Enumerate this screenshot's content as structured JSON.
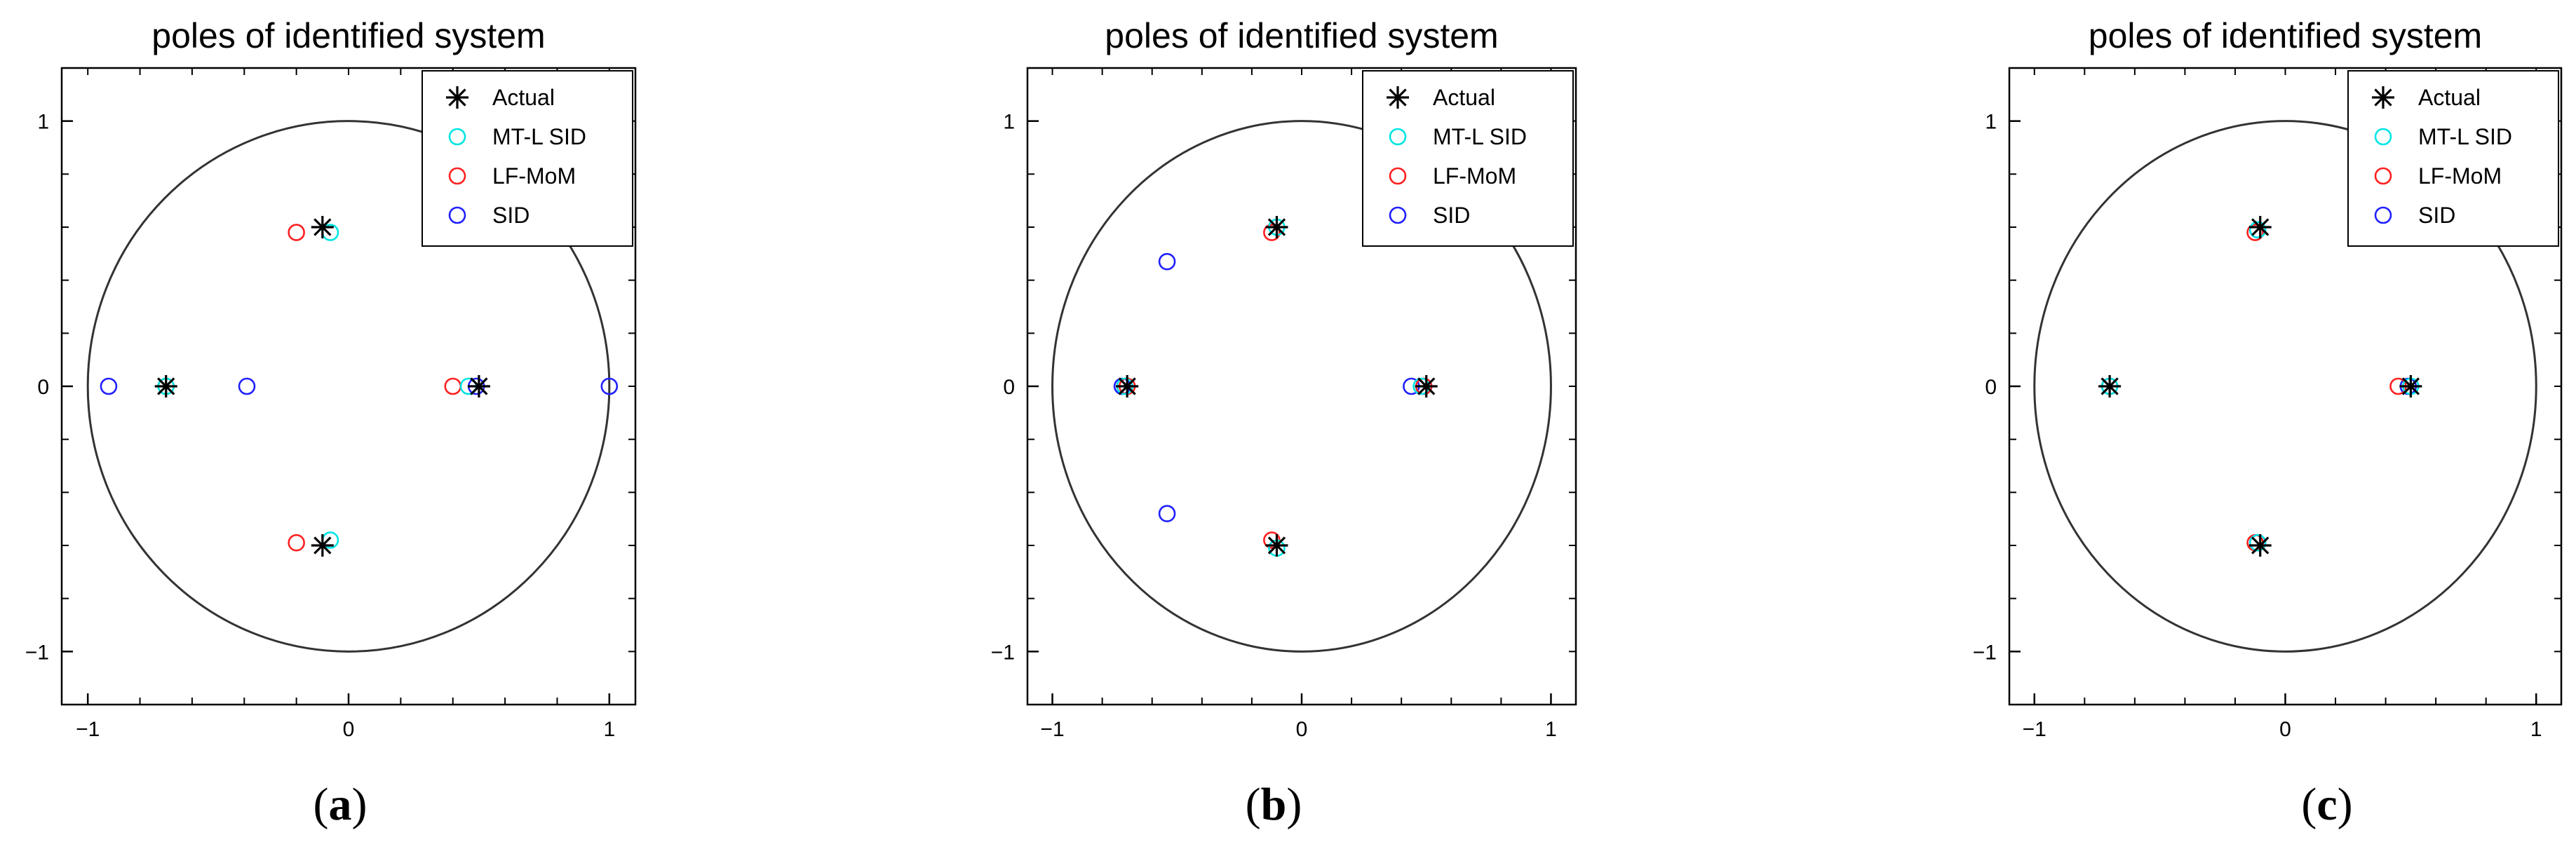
{
  "colors": {
    "actual": "#000000",
    "mtl": "#00e5e5",
    "lfmom": "#ff2020",
    "sid": "#2020ff",
    "axis": "#000000"
  },
  "panels": [
    {
      "caption_letter": "a"
    },
    {
      "caption_letter": "b"
    },
    {
      "caption_letter": "c"
    }
  ],
  "chart_data": [
    {
      "type": "scatter",
      "title": "poles of identified system",
      "xlim": [
        -1.1,
        1.1
      ],
      "ylim": [
        -1.2,
        1.2
      ],
      "xticks": [
        -1,
        0,
        1
      ],
      "yticks": [
        -1,
        0,
        1
      ],
      "grid": false,
      "legend_position": "top-right",
      "unit_circle": true,
      "series": [
        {
          "name": "Actual",
          "marker": "star",
          "points": [
            [
              -0.7,
              0
            ],
            [
              -0.1,
              0.6
            ],
            [
              -0.1,
              -0.6
            ],
            [
              0.5,
              0
            ]
          ]
        },
        {
          "name": "MT-L SID",
          "marker": "circle",
          "points": [
            [
              -0.7,
              0
            ],
            [
              -0.07,
              0.58
            ],
            [
              -0.07,
              -0.58
            ],
            [
              0.46,
              0
            ]
          ]
        },
        {
          "name": "LF-MoM",
          "marker": "circle",
          "points": [
            [
              -0.7,
              0
            ],
            [
              -0.2,
              0.58
            ],
            [
              -0.2,
              -0.59
            ],
            [
              0.4,
              0
            ]
          ]
        },
        {
          "name": "SID",
          "marker": "circle",
          "points": [
            [
              -0.92,
              0
            ],
            [
              -0.39,
              0
            ],
            [
              0.49,
              0
            ],
            [
              1.0,
              0
            ]
          ]
        }
      ]
    },
    {
      "type": "scatter",
      "title": "poles of identified system",
      "xlim": [
        -1.1,
        1.1
      ],
      "ylim": [
        -1.2,
        1.2
      ],
      "xticks": [
        -1,
        0,
        1
      ],
      "yticks": [
        -1,
        0,
        1
      ],
      "grid": false,
      "legend_position": "top-right",
      "unit_circle": true,
      "series": [
        {
          "name": "Actual",
          "marker": "star",
          "points": [
            [
              -0.7,
              0
            ],
            [
              -0.1,
              0.6
            ],
            [
              -0.1,
              -0.6
            ],
            [
              0.5,
              0
            ]
          ]
        },
        {
          "name": "MT-L SID",
          "marker": "circle",
          "points": [
            [
              -0.71,
              0
            ],
            [
              -0.1,
              0.6
            ],
            [
              -0.1,
              -0.61
            ],
            [
              0.48,
              0
            ]
          ]
        },
        {
          "name": "LF-MoM",
          "marker": "circle",
          "points": [
            [
              -0.7,
              0
            ],
            [
              -0.12,
              0.58
            ],
            [
              -0.12,
              -0.58
            ],
            [
              0.49,
              0
            ]
          ]
        },
        {
          "name": "SID",
          "marker": "circle",
          "points": [
            [
              -0.72,
              0
            ],
            [
              -0.54,
              0.47
            ],
            [
              -0.54,
              -0.48
            ],
            [
              0.44,
              0
            ]
          ]
        }
      ]
    },
    {
      "type": "scatter",
      "title": "poles of identified system",
      "xlim": [
        -1.1,
        1.1
      ],
      "ylim": [
        -1.2,
        1.2
      ],
      "xticks": [
        -1,
        0,
        1
      ],
      "yticks": [
        -1,
        0,
        1
      ],
      "grid": false,
      "legend_position": "top-right",
      "unit_circle": true,
      "series": [
        {
          "name": "Actual",
          "marker": "star",
          "points": [
            [
              -0.7,
              0
            ],
            [
              -0.1,
              0.6
            ],
            [
              -0.1,
              -0.6
            ],
            [
              0.5,
              0
            ]
          ]
        },
        {
          "name": "MT-L SID",
          "marker": "circle",
          "points": [
            [
              -0.7,
              0
            ],
            [
              -0.11,
              0.59
            ],
            [
              -0.11,
              -0.59
            ],
            [
              0.5,
              0
            ]
          ]
        },
        {
          "name": "LF-MoM",
          "marker": "circle",
          "points": [
            [
              -0.7,
              0
            ],
            [
              -0.12,
              0.58
            ],
            [
              -0.12,
              -0.59
            ],
            [
              0.45,
              0
            ]
          ]
        },
        {
          "name": "SID",
          "marker": "circle",
          "points": [
            [
              -0.7,
              0
            ],
            [
              -0.11,
              0.59
            ],
            [
              -0.11,
              -0.59
            ],
            [
              0.49,
              0
            ]
          ]
        }
      ]
    }
  ]
}
